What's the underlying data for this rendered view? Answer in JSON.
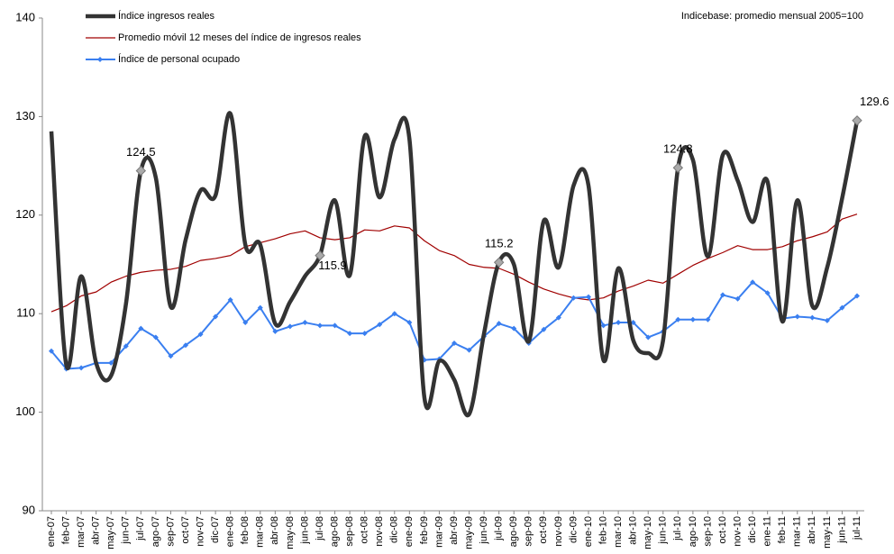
{
  "chart_data": {
    "type": "line",
    "note": "Indicebase: promedio mensual 2005=100",
    "categories": [
      "ene-07",
      "feb-07",
      "mar-07",
      "abr-07",
      "may-07",
      "jun-07",
      "jul-07",
      "ago-07",
      "sep-07",
      "oct-07",
      "nov-07",
      "dic-07",
      "ene-08",
      "feb-08",
      "mar-08",
      "abr-08",
      "may-08",
      "jun-08",
      "jul-08",
      "ago-08",
      "sep-08",
      "oct-08",
      "nov-08",
      "dic-08",
      "ene-09",
      "feb-09",
      "mar-09",
      "abr-09",
      "may-09",
      "jun-09",
      "jul-09",
      "ago-09",
      "sep-09",
      "oct-09",
      "nov-09",
      "dic-09",
      "ene-10",
      "feb-10",
      "mar-10",
      "abr-10",
      "may-10",
      "jun-10",
      "jul-10",
      "ago-10",
      "sep-10",
      "oct-10",
      "nov-10",
      "dic-10",
      "ene-11",
      "feb-11",
      "mar-11",
      "abr-11",
      "may-11",
      "jun-11",
      "jul-11"
    ],
    "series": [
      {
        "name": "Índice ingresos reales",
        "color": "#333333",
        "smooth": true,
        "values": [
          128.5,
          104.8,
          113.8,
          105,
          103.7,
          111,
          124.5,
          123.8,
          110.7,
          117.5,
          122.5,
          122,
          130.3,
          117,
          117,
          109,
          111.2,
          113.8,
          115.9,
          121.5,
          113.9,
          128,
          121.8,
          127.7,
          127.7,
          101.5,
          105.2,
          103.3,
          99.8,
          108,
          115.2,
          115,
          107.2,
          119.4,
          114.7,
          123,
          123,
          105.3,
          114.6,
          107.3,
          106,
          107.3,
          124.8,
          125.6,
          115.8,
          126.1,
          123.5,
          119.3,
          123.4,
          109.2,
          121.5,
          110.8,
          114.7,
          121.7,
          129.6
        ],
        "value_labels": [
          null,
          null,
          null,
          null,
          null,
          null,
          "124.5",
          null,
          null,
          null,
          null,
          null,
          null,
          null,
          null,
          null,
          null,
          null,
          "115.9",
          null,
          null,
          null,
          null,
          null,
          null,
          null,
          null,
          null,
          null,
          null,
          "115.2",
          null,
          null,
          null,
          null,
          null,
          null,
          null,
          null,
          null,
          null,
          null,
          "124.8",
          null,
          null,
          null,
          null,
          null,
          null,
          null,
          null,
          null,
          null,
          null,
          "129.6"
        ]
      },
      {
        "name": "Promedio móvil 12 meses del índice de ingresos reales",
        "color": "#a00000",
        "smooth": false,
        "values": [
          110.2,
          110.8,
          111.8,
          112.2,
          113.2,
          113.8,
          114.2,
          114.4,
          114.5,
          114.8,
          115.4,
          115.6,
          115.9,
          116.8,
          117.2,
          117.6,
          118.1,
          118.4,
          117.7,
          117.5,
          117.7,
          118.5,
          118.4,
          118.9,
          118.7,
          117.4,
          116.4,
          115.9,
          115.0,
          114.7,
          114.6,
          114.0,
          113.2,
          112.5,
          112.0,
          111.6,
          111.4,
          111.6,
          112.3,
          112.8,
          113.4,
          113.1,
          114.0,
          114.9,
          115.6,
          116.2,
          116.9,
          116.5,
          116.5,
          116.8,
          117.4,
          117.8,
          118.3,
          119.6,
          120.1
        ]
      },
      {
        "name": "Índice de personal ocupado",
        "color": "#3a7ff0",
        "smooth": false,
        "markers": true,
        "values": [
          106.2,
          104.4,
          104.5,
          105.0,
          105.0,
          106.7,
          108.5,
          107.6,
          105.7,
          106.8,
          107.9,
          109.7,
          111.4,
          109.1,
          110.6,
          108.2,
          108.7,
          109.1,
          108.8,
          108.8,
          108.0,
          108.0,
          108.9,
          110.0,
          109.1,
          105.3,
          105.4,
          107.0,
          106.3,
          107.7,
          109.0,
          108.5,
          107.0,
          108.4,
          109.6,
          111.6,
          111.7,
          108.8,
          109.1,
          109.1,
          107.6,
          108.2,
          109.4,
          109.4,
          109.4,
          111.9,
          111.5,
          113.2,
          112.1,
          109.5,
          109.7,
          109.6,
          109.3,
          110.6,
          111.8
        ]
      }
    ],
    "ylim": [
      90,
      140
    ],
    "yticks": [
      90,
      100,
      110,
      120,
      130,
      140
    ],
    "grid": false
  }
}
